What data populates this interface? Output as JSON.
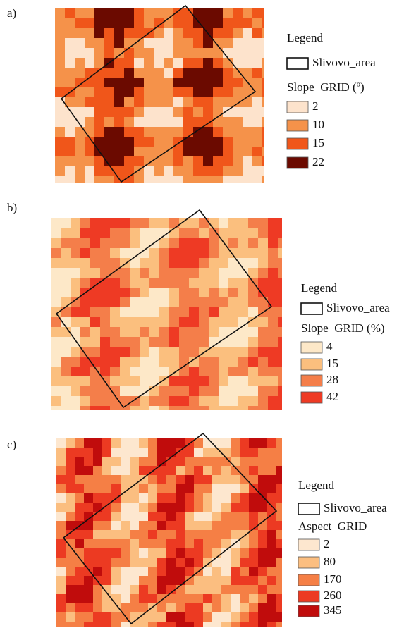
{
  "panels": [
    {
      "label": "a)",
      "legend": {
        "title": "Legend",
        "area": "Slivovo_area",
        "grid_title": "Slope_GRID (º)",
        "items": [
          {
            "label": "2",
            "color": "#fde3cc"
          },
          {
            "label": "10",
            "color": "#f5924a"
          },
          {
            "label": "15",
            "color": "#f0561a"
          },
          {
            "label": "22",
            "color": "#6b0a00"
          }
        ]
      }
    },
    {
      "label": "b)",
      "legend": {
        "title": "Legend",
        "area": "Slivovo_area",
        "grid_title": "Slope_GRID (%)",
        "items": [
          {
            "label": "4",
            "color": "#fde8c8"
          },
          {
            "label": "15",
            "color": "#fbbf7e"
          },
          {
            "label": "28",
            "color": "#f47e4a"
          },
          {
            "label": "42",
            "color": "#ee3a24"
          }
        ]
      }
    },
    {
      "label": "c)",
      "legend": {
        "title": "Legend",
        "area": "Slivovo_area",
        "grid_title": "Aspect_GRID",
        "items": [
          {
            "label": "2",
            "color": "#fde7cf"
          },
          {
            "label": "80",
            "color": "#fbbe80"
          },
          {
            "label": "170",
            "color": "#f57f45"
          },
          {
            "label": "260",
            "color": "#ec3a22"
          },
          {
            "label": "345",
            "color": "#c00c0c"
          }
        ]
      }
    }
  ]
}
